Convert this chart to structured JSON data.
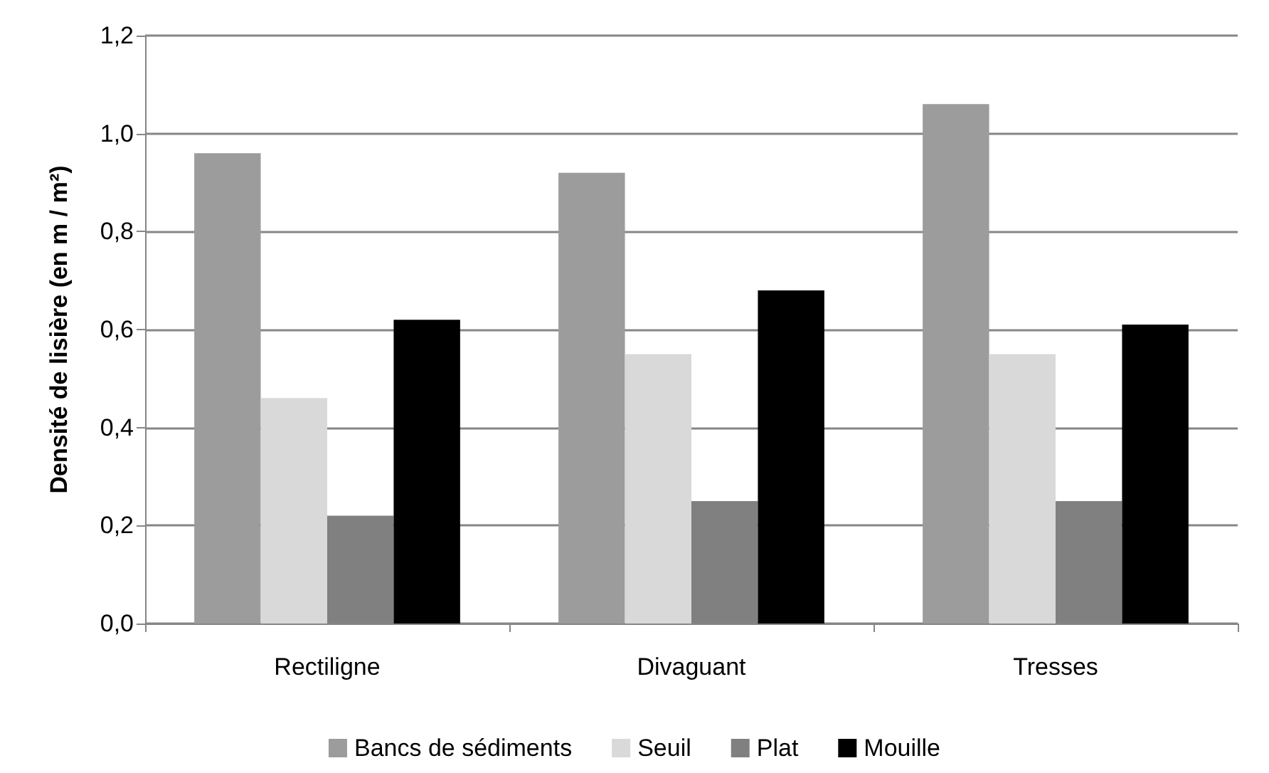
{
  "chart_data": {
    "type": "bar",
    "ylabel": "Densité de lisière (en m / m²)",
    "categories": [
      "Rectiligne",
      "Divaguant",
      "Tresses"
    ],
    "series": [
      {
        "name": "Bancs de sédiments",
        "color": "#9c9c9c",
        "values": [
          0.96,
          0.92,
          1.06
        ]
      },
      {
        "name": "Seuil",
        "color": "#d9d9d9",
        "values": [
          0.46,
          0.55,
          0.55
        ]
      },
      {
        "name": "Plat",
        "color": "#808080",
        "values": [
          0.22,
          0.25,
          0.25
        ]
      },
      {
        "name": "Mouille",
        "color": "#000000",
        "values": [
          0.62,
          0.68,
          0.61
        ]
      }
    ],
    "ylim": [
      0,
      1.2
    ],
    "yticks": [
      {
        "value": 0,
        "label": "0,0"
      },
      {
        "value": 0.2,
        "label": "0,2"
      },
      {
        "value": 0.4,
        "label": "0,4"
      },
      {
        "value": 0.6,
        "label": "0,6"
      },
      {
        "value": 0.8,
        "label": "0,8"
      },
      {
        "value": 1.0,
        "label": "1,0"
      },
      {
        "value": 1.2,
        "label": "1,2"
      }
    ],
    "grid": "y",
    "legend": "bottom"
  }
}
